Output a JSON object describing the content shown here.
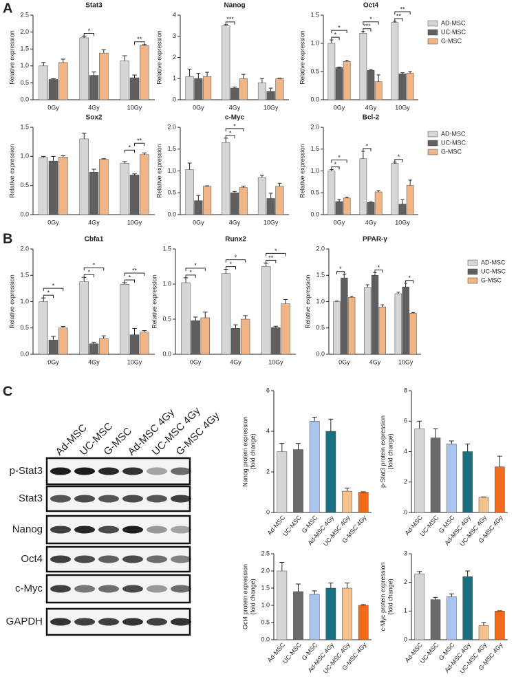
{
  "panels": [
    "A",
    "B",
    "C"
  ],
  "blot": {
    "lanes": [
      "Ad-MSC",
      "UC-MSC",
      "G-MSC",
      "Ad-MSC 4Gy",
      "UC-MSC 4Gy",
      "G-MSC 4Gy"
    ],
    "rows": [
      "p-Stat3",
      "Stat3",
      "Nanog",
      "Oct4",
      "c-Myc",
      "GAPDH"
    ]
  },
  "chart_data": [
    {
      "type": "bar",
      "title": "Stat3",
      "ylabel": [
        "Relative expression"
      ],
      "categories": [
        "0Gy",
        "4Gy",
        "10Gy"
      ],
      "ylim": [
        0,
        2.5
      ],
      "yticks": [
        {
          "value": 0,
          "label": "0.0"
        },
        0.5,
        {
          "value": 1,
          "label": "1.0"
        },
        1.5,
        {
          "value": 2,
          "label": "2.0"
        },
        2.5
      ],
      "legend": false,
      "series": [
        {
          "name": "AD-MSC",
          "color": "#d6d6d6",
          "values": [
            1.0,
            1.83,
            1.15
          ],
          "errors": [
            0.1,
            0.05,
            0.15
          ]
        },
        {
          "name": "UC-MSC",
          "color": "#5f5f5f",
          "values": [
            0.6,
            0.72,
            0.65
          ],
          "errors": [
            0.02,
            0.1,
            0.08
          ]
        },
        {
          "name": "G-MSC",
          "color": "#f0b587",
          "values": [
            1.1,
            1.38,
            1.6
          ],
          "errors": [
            0.1,
            0.1,
            0.03
          ]
        }
      ],
      "annotations": [
        {
          "text": "*",
          "category": "4Gy",
          "pair": [
            "AD-MSC",
            "UC-MSC"
          ]
        },
        {
          "text": "**",
          "category": "10Gy",
          "pair": [
            "UC-MSC",
            "G-MSC"
          ]
        }
      ]
    },
    {
      "type": "bar",
      "title": "Nanog",
      "ylabel": [
        "Relative expression"
      ],
      "categories": [
        "0Gy",
        "4Gy",
        "10Gy"
      ],
      "ylim": [
        0,
        4
      ],
      "yticks": [
        0,
        1,
        2,
        3,
        4
      ],
      "legend": false,
      "series": [
        {
          "name": "AD-MSC",
          "color": "#d6d6d6",
          "values": [
            1.1,
            3.5,
            0.8
          ],
          "errors": [
            0.35,
            0.05,
            0.2
          ]
        },
        {
          "name": "UC-MSC",
          "color": "#5f5f5f",
          "values": [
            1.0,
            0.55,
            0.4
          ],
          "errors": [
            0.25,
            0.05,
            0.15
          ]
        },
        {
          "name": "G-MSC",
          "color": "#f0b587",
          "values": [
            1.1,
            1.0,
            1.0
          ],
          "errors": [
            0.2,
            0.2,
            0.02
          ]
        }
      ],
      "annotations": [
        {
          "text": "***",
          "category": "4Gy",
          "pair": [
            "AD-MSC",
            "UC-MSC"
          ]
        }
      ]
    },
    {
      "type": "bar",
      "title": "Oct4",
      "ylabel": [
        "Relative expression"
      ],
      "categories": [
        "0Gy",
        "4Gy",
        "10Gy"
      ],
      "ylim": [
        0,
        1.5
      ],
      "yticks": [
        {
          "value": 0,
          "label": "0.0"
        },
        0.5,
        {
          "value": 1,
          "label": "1.0"
        },
        1.5
      ],
      "legend": true,
      "series": [
        {
          "name": "AD-MSC",
          "color": "#d6d6d6",
          "values": [
            1.0,
            1.18,
            1.37
          ],
          "errors": [
            0.06,
            0.03,
            0.02
          ]
        },
        {
          "name": "UC-MSC",
          "color": "#5f5f5f",
          "values": [
            0.57,
            0.52,
            0.46
          ],
          "errors": [
            0.01,
            0.01,
            0.02
          ]
        },
        {
          "name": "G-MSC",
          "color": "#f0b587",
          "values": [
            0.68,
            0.32,
            0.47
          ],
          "errors": [
            0.02,
            0.12,
            0.03
          ]
        }
      ],
      "annotations": [
        {
          "text": "*",
          "category": "0Gy",
          "pair": [
            "AD-MSC",
            "UC-MSC"
          ]
        },
        {
          "text": "*",
          "category": "0Gy",
          "pair": [
            "AD-MSC",
            "G-MSC"
          ]
        },
        {
          "text": "***",
          "category": "4Gy",
          "pair": [
            "AD-MSC",
            "UC-MSC"
          ]
        },
        {
          "text": "*",
          "category": "4Gy",
          "pair": [
            "AD-MSC",
            "G-MSC"
          ]
        },
        {
          "text": "**",
          "category": "10Gy",
          "pair": [
            "AD-MSC",
            "UC-MSC"
          ]
        },
        {
          "text": "**",
          "category": "10Gy",
          "pair": [
            "AD-MSC",
            "G-MSC"
          ]
        }
      ]
    },
    {
      "type": "bar",
      "title": "Sox2",
      "ylabel": [
        "Relative expression"
      ],
      "categories": [
        "0Gy",
        "4Gy",
        "10Gy"
      ],
      "ylim": [
        0,
        1.5
      ],
      "yticks": [
        {
          "value": 0,
          "label": "0.0"
        },
        0.5,
        {
          "value": 1,
          "label": "1.0"
        },
        1.5
      ],
      "legend": false,
      "series": [
        {
          "name": "AD-MSC",
          "color": "#d6d6d6",
          "values": [
            0.98,
            1.3,
            0.88
          ],
          "errors": [
            0.02,
            0.1,
            0.03
          ]
        },
        {
          "name": "UC-MSC",
          "color": "#5f5f5f",
          "values": [
            0.92,
            0.73,
            0.68
          ],
          "errors": [
            0.08,
            0.05,
            0.02
          ]
        },
        {
          "name": "G-MSC",
          "color": "#f0b587",
          "values": [
            0.99,
            0.95,
            1.03
          ],
          "errors": [
            0.02,
            0.01,
            0.03
          ]
        }
      ],
      "annotations": [
        {
          "text": "*",
          "category": "10Gy",
          "pair": [
            "AD-MSC",
            "UC-MSC"
          ]
        },
        {
          "text": "**",
          "category": "10Gy",
          "pair": [
            "UC-MSC",
            "G-MSC"
          ]
        }
      ]
    },
    {
      "type": "bar",
      "title": "c-Myc",
      "ylabel": [
        "Relative expression"
      ],
      "categories": [
        "0Gy",
        "4Gy",
        "10Gy"
      ],
      "ylim": [
        0,
        2
      ],
      "yticks": [
        {
          "value": 0,
          "label": "0.0"
        },
        0.5,
        {
          "value": 1,
          "label": "1.0"
        },
        1.5,
        {
          "value": 2,
          "label": "2.0"
        }
      ],
      "legend": false,
      "series": [
        {
          "name": "AD-MSC",
          "color": "#d6d6d6",
          "values": [
            1.03,
            1.65,
            0.85
          ],
          "errors": [
            0.15,
            0.1,
            0.05
          ]
        },
        {
          "name": "UC-MSC",
          "color": "#5f5f5f",
          "values": [
            0.32,
            0.5,
            0.37
          ],
          "errors": [
            0.12,
            0.03,
            0.12
          ]
        },
        {
          "name": "G-MSC",
          "color": "#f0b587",
          "values": [
            0.65,
            0.62,
            0.65
          ],
          "errors": [
            0.01,
            0.03,
            0.07
          ]
        }
      ],
      "annotations": [
        {
          "text": "*",
          "category": "4Gy",
          "pair": [
            "AD-MSC",
            "UC-MSC"
          ]
        },
        {
          "text": "*",
          "category": "4Gy",
          "pair": [
            "AD-MSC",
            "G-MSC"
          ]
        }
      ]
    },
    {
      "type": "bar",
      "title": "Bcl-2",
      "ylabel": [
        "Relative expression"
      ],
      "categories": [
        "0Gy",
        "4Gy",
        "10Gy"
      ],
      "ylim": [
        0,
        2
      ],
      "yticks": [
        {
          "value": 0,
          "label": "0.0"
        },
        0.5,
        {
          "value": 1,
          "label": "1.0"
        },
        1.5,
        {
          "value": 2,
          "label": "2.0"
        }
      ],
      "legend": true,
      "series": [
        {
          "name": "AD-MSC",
          "color": "#d6d6d6",
          "values": [
            1.0,
            1.28,
            1.17
          ],
          "errors": [
            0.03,
            0.17,
            0.03
          ]
        },
        {
          "name": "UC-MSC",
          "color": "#5f5f5f",
          "values": [
            0.3,
            0.28,
            0.24
          ],
          "errors": [
            0.05,
            0.01,
            0.1
          ]
        },
        {
          "name": "G-MSC",
          "color": "#f0b587",
          "values": [
            0.38,
            0.52,
            0.67
          ],
          "errors": [
            0.02,
            0.03,
            0.12
          ]
        }
      ],
      "annotations": [
        {
          "text": "*",
          "category": "0Gy",
          "pair": [
            "AD-MSC",
            "UC-MSC"
          ]
        },
        {
          "text": "*",
          "category": "0Gy",
          "pair": [
            "AD-MSC",
            "G-MSC"
          ]
        },
        {
          "text": "*",
          "category": "4Gy",
          "pair": [
            "AD-MSC",
            "UC-MSC"
          ]
        },
        {
          "text": "*",
          "category": "10Gy",
          "pair": [
            "AD-MSC",
            "UC-MSC"
          ]
        }
      ]
    },
    {
      "type": "bar",
      "title": "Cbfa1",
      "ylabel": [
        "Relative expression"
      ],
      "categories": [
        "0Gy",
        "4Gy",
        "10Gy"
      ],
      "ylim": [
        0,
        2
      ],
      "yticks": [
        {
          "value": 0,
          "label": "0.0"
        },
        0.5,
        {
          "value": 1,
          "label": "1.0"
        },
        1.5,
        {
          "value": 2,
          "label": "2.0"
        }
      ],
      "legend": false,
      "series": [
        {
          "name": "AD-MSC",
          "color": "#d6d6d6",
          "values": [
            1.0,
            1.38,
            1.33
          ],
          "errors": [
            0.07,
            0.08,
            0.03
          ]
        },
        {
          "name": "UC-MSC",
          "color": "#5f5f5f",
          "values": [
            0.27,
            0.2,
            0.37
          ],
          "errors": [
            0.07,
            0.03,
            0.12
          ]
        },
        {
          "name": "G-MSC",
          "color": "#f0b587",
          "values": [
            0.5,
            0.3,
            0.42
          ],
          "errors": [
            0.03,
            0.05,
            0.03
          ]
        }
      ],
      "annotations": [
        {
          "text": "*",
          "category": "0Gy",
          "pair": [
            "AD-MSC",
            "UC-MSC"
          ]
        },
        {
          "text": "*",
          "category": "0Gy",
          "pair": [
            "AD-MSC",
            "G-MSC"
          ]
        },
        {
          "text": "*",
          "category": "4Gy",
          "pair": [
            "AD-MSC",
            "UC-MSC"
          ]
        },
        {
          "text": "*",
          "category": "4Gy",
          "pair": [
            "AD-MSC",
            "G-MSC"
          ]
        },
        {
          "text": "*",
          "category": "10Gy",
          "pair": [
            "AD-MSC",
            "UC-MSC"
          ]
        },
        {
          "text": "**",
          "category": "10Gy",
          "pair": [
            "AD-MSC",
            "G-MSC"
          ]
        }
      ]
    },
    {
      "type": "bar",
      "title": "Runx2",
      "ylabel": [
        "Relative expression"
      ],
      "categories": [
        "0Gy",
        "4Gy",
        "10Gy"
      ],
      "ylim": [
        0,
        1.5
      ],
      "yticks": [
        {
          "value": 0,
          "label": "0.0"
        },
        0.5,
        {
          "value": 1,
          "label": "1.0"
        },
        1.5
      ],
      "legend": false,
      "series": [
        {
          "name": "AD-MSC",
          "color": "#d6d6d6",
          "values": [
            1.02,
            1.15,
            1.25
          ],
          "errors": [
            0.07,
            0.06,
            0.05
          ]
        },
        {
          "name": "UC-MSC",
          "color": "#5f5f5f",
          "values": [
            0.48,
            0.37,
            0.38
          ],
          "errors": [
            0.05,
            0.05,
            0.02
          ]
        },
        {
          "name": "G-MSC",
          "color": "#f0b587",
          "values": [
            0.52,
            0.5,
            0.72
          ],
          "errors": [
            0.08,
            0.05,
            0.06
          ]
        }
      ],
      "annotations": [
        {
          "text": "*",
          "category": "0Gy",
          "pair": [
            "AD-MSC",
            "UC-MSC"
          ]
        },
        {
          "text": "*",
          "category": "0Gy",
          "pair": [
            "AD-MSC",
            "G-MSC"
          ]
        },
        {
          "text": "*",
          "category": "4Gy",
          "pair": [
            "AD-MSC",
            "UC-MSC"
          ]
        },
        {
          "text": "*",
          "category": "4Gy",
          "pair": [
            "AD-MSC",
            "G-MSC"
          ]
        },
        {
          "text": "**",
          "category": "10Gy",
          "pair": [
            "AD-MSC",
            "UC-MSC"
          ]
        },
        {
          "text": "*",
          "category": "10Gy",
          "pair": [
            "AD-MSC",
            "G-MSC"
          ]
        }
      ]
    },
    {
      "type": "bar",
      "title": "PPAR-γ",
      "ylabel": [
        "Relative expression"
      ],
      "categories": [
        "0Gy",
        "4Gy",
        "10Gy"
      ],
      "ylim": [
        0,
        2
      ],
      "yticks": [
        {
          "value": 0,
          "label": "0.0"
        },
        0.5,
        {
          "value": 1,
          "label": "1.0"
        },
        1.5,
        {
          "value": 2,
          "label": "2.0"
        }
      ],
      "legend": true,
      "series": [
        {
          "name": "AD-MSC",
          "color": "#d6d6d6",
          "values": [
            1.0,
            1.27,
            1.15
          ],
          "errors": [
            0.01,
            0.05,
            0.03
          ]
        },
        {
          "name": "UC-MSC",
          "color": "#5f5f5f",
          "values": [
            1.45,
            1.5,
            1.28
          ],
          "errors": [
            0.07,
            0.05,
            0.07
          ]
        },
        {
          "name": "G-MSC",
          "color": "#f0b587",
          "values": [
            1.08,
            0.9,
            0.78
          ],
          "errors": [
            0.02,
            0.04,
            0.01
          ]
        }
      ],
      "annotations": [
        {
          "text": "*",
          "category": "0Gy",
          "pair": [
            "AD-MSC",
            "UC-MSC"
          ]
        },
        {
          "text": "*",
          "category": "4Gy",
          "pair": [
            "UC-MSC",
            "G-MSC"
          ]
        },
        {
          "text": "*",
          "category": "10Gy",
          "pair": [
            "UC-MSC",
            "G-MSC"
          ]
        }
      ]
    },
    {
      "type": "bar",
      "ylabel": [
        "Nanog protein expression",
        "(fold change)"
      ],
      "categories": [
        "Ad-MSC",
        "UC-MSC",
        "G-MSC",
        "Ad-MSC 4Gy",
        "UC-MSC 4Gy",
        "G-MSC 4Gy"
      ],
      "colors": [
        "#d6d6d6",
        "#6a6a6a",
        "#a9c4ef",
        "#1a6f80",
        "#f5c18e",
        "#ef6a1a"
      ],
      "ylim": [
        0,
        6
      ],
      "yticks": [
        0,
        2,
        4,
        6
      ],
      "values": [
        3.0,
        3.1,
        4.5,
        4.0,
        1.05,
        1.0
      ],
      "errors": [
        0.4,
        0.3,
        0.2,
        0.6,
        0.15,
        0.02
      ]
    },
    {
      "type": "bar",
      "ylabel": [
        "p-Stat3 protein expression",
        "(fold change)"
      ],
      "categories": [
        "Ad-MSC",
        "UC-MSC",
        "G-MSC",
        "Ad-MSC 4Gy",
        "UC-MSC 4Gy",
        "G-MSC 4Gy"
      ],
      "colors": [
        "#d6d6d6",
        "#6a6a6a",
        "#a9c4ef",
        "#1a6f80",
        "#f5c18e",
        "#ef6a1a"
      ],
      "ylim": [
        0,
        8
      ],
      "yticks": [
        0,
        2,
        4,
        6,
        8
      ],
      "values": [
        5.5,
        4.9,
        4.5,
        4.0,
        1.0,
        3.0
      ],
      "errors": [
        0.5,
        0.6,
        0.2,
        0.5,
        0.02,
        0.7
      ]
    },
    {
      "type": "bar",
      "ylabel": [
        "Oct4 protein expression",
        "(fold change)"
      ],
      "categories": [
        "Ad-MSC",
        "UC-MSC",
        "G-MSC",
        "Ad-MSC 4Gy",
        "UC-MSC 4Gy",
        "G-MSC 4Gy"
      ],
      "colors": [
        "#d6d6d6",
        "#6a6a6a",
        "#a9c4ef",
        "#1a6f80",
        "#f5c18e",
        "#ef6a1a"
      ],
      "ylim": [
        0,
        2.5
      ],
      "yticks": [
        {
          "value": 0,
          "label": "0.0"
        },
        0.5,
        {
          "value": 1,
          "label": "1.0"
        },
        1.5,
        {
          "value": 2,
          "label": "2.0"
        },
        2.5
      ],
      "values": [
        2.0,
        1.4,
        1.32,
        1.5,
        1.5,
        1.0
      ],
      "errors": [
        0.25,
        0.22,
        0.1,
        0.15,
        0.15,
        0.02
      ]
    },
    {
      "type": "bar",
      "ylabel": [
        "c-Myc protein expression",
        "(fold change)"
      ],
      "categories": [
        "Ad-MSC",
        "UC-MSC",
        "G-MSC",
        "Ad-MSC 4Gy",
        "UC-MSC 4Gy",
        "G-MSC 4Gy"
      ],
      "colors": [
        "#d6d6d6",
        "#6a6a6a",
        "#a9c4ef",
        "#1a6f80",
        "#f5c18e",
        "#ef6a1a"
      ],
      "ylim": [
        0,
        3
      ],
      "yticks": [
        0,
        1,
        2,
        3
      ],
      "values": [
        2.3,
        1.4,
        1.5,
        2.2,
        0.5,
        1.0
      ],
      "errors": [
        0.08,
        0.08,
        0.1,
        0.2,
        0.1,
        0.01
      ]
    }
  ]
}
